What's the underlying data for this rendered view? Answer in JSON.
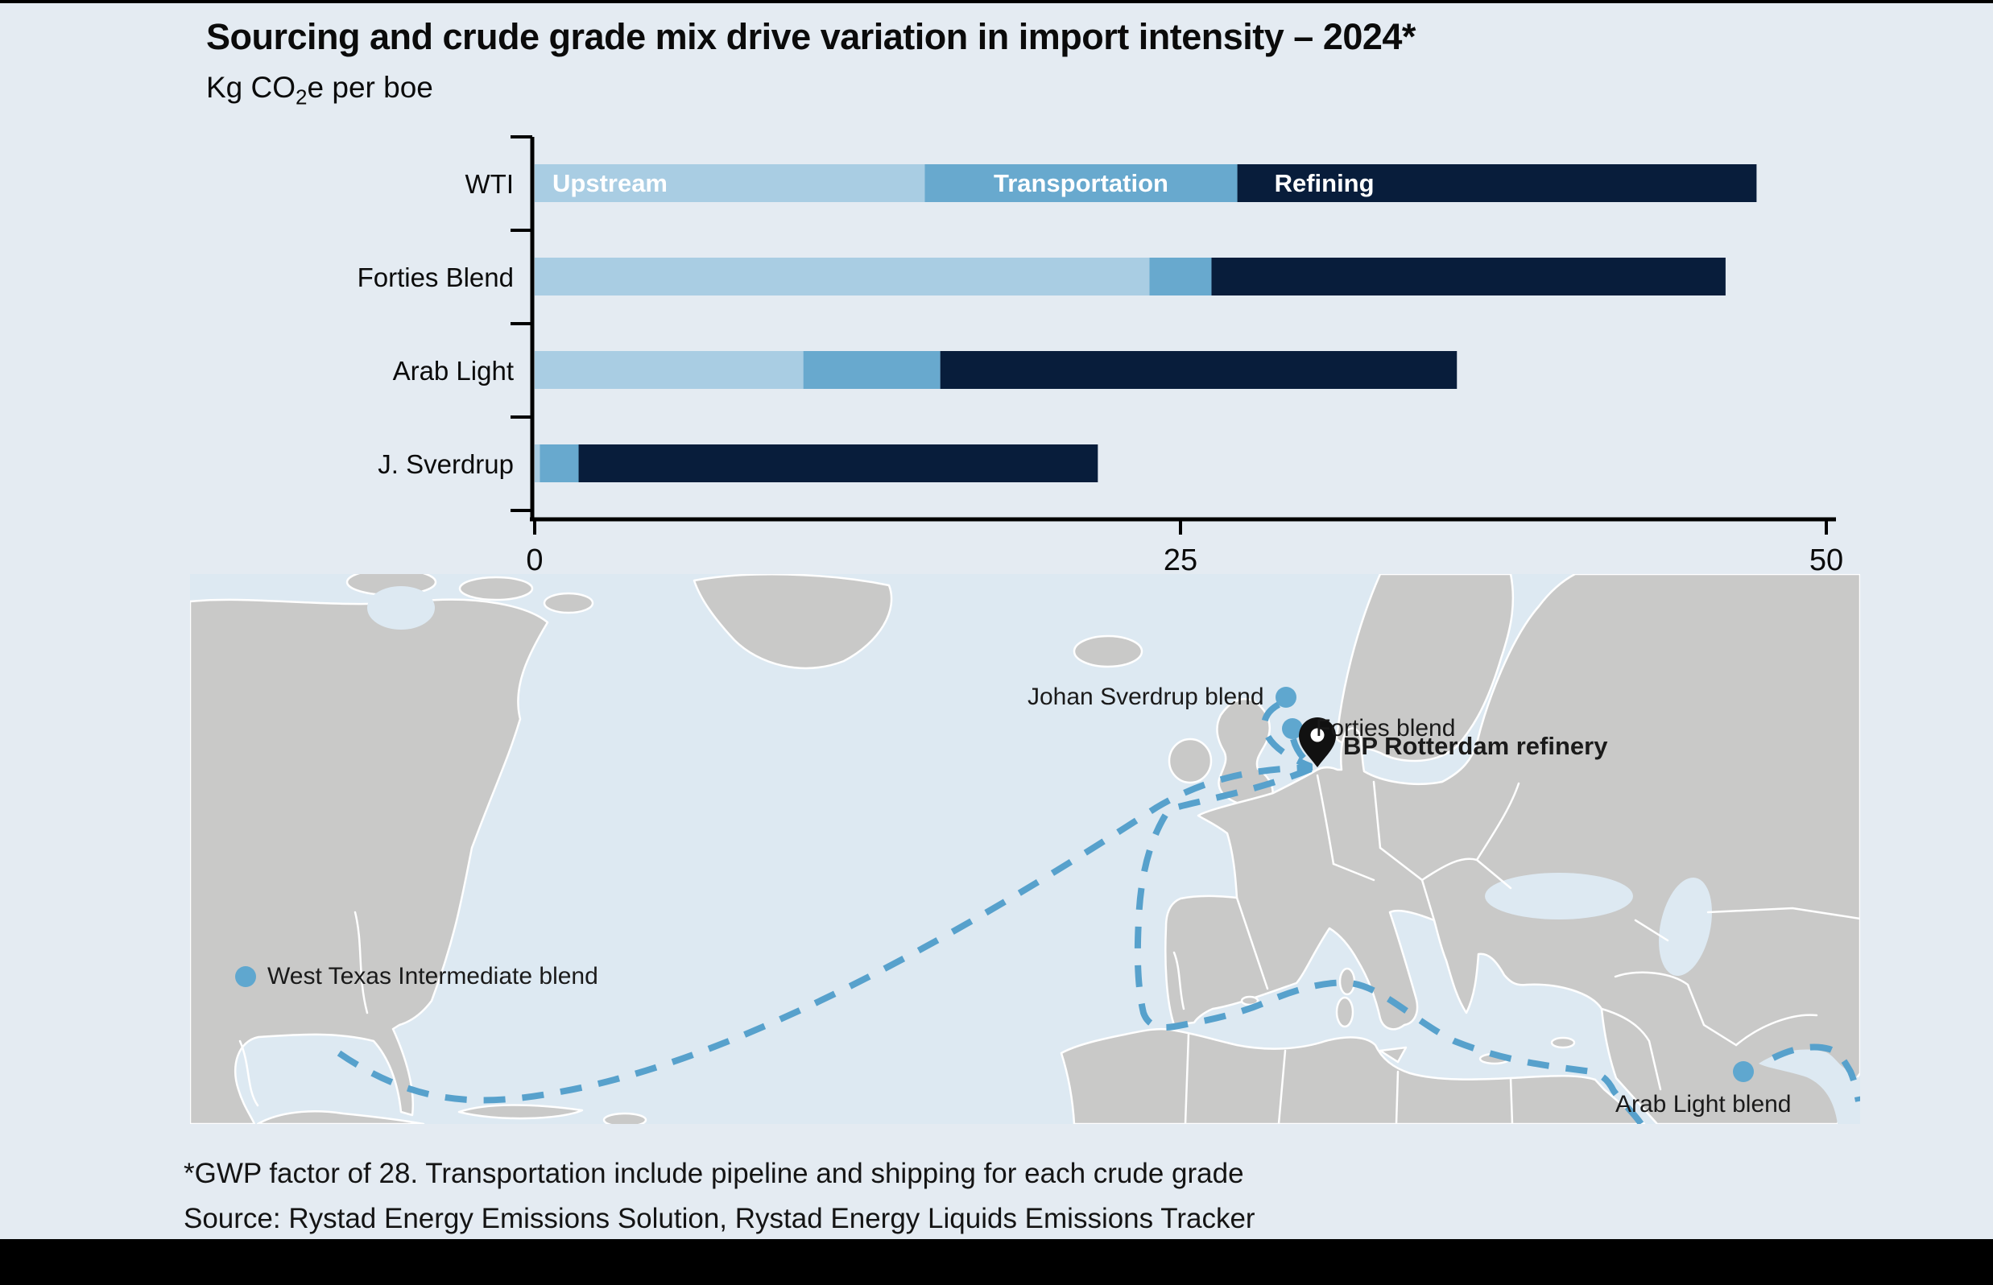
{
  "page": {
    "background_color": "#e4ebf2",
    "title": "Sourcing and crude grade mix drive variation in import intensity – 2024*",
    "subtitle_parts": {
      "pre": "Kg CO",
      "sub": "2",
      "post": "e per boe"
    },
    "footnote": "*GWP factor of 28. Transportation include pipeline and shipping for each crude grade",
    "source": "Source: Rystad Energy Emissions Solution, Rystad Energy Liquids Emissions Tracker"
  },
  "chart_data": {
    "type": "bar",
    "orientation": "horizontal",
    "stacked": true,
    "title": "Sourcing and crude grade mix drive variation in import intensity – 2024*",
    "units": "Kg CO2e per boe",
    "categories": [
      "WTI",
      "Forties Blend",
      "Arab Light",
      "J. Sverdrup"
    ],
    "series": [
      {
        "name": "Upstream",
        "color": "#a9cde3",
        "values": [
          15.1,
          23.8,
          10.4,
          0.2
        ]
      },
      {
        "name": "Transportation",
        "color": "#68a9ce",
        "values": [
          12.1,
          2.4,
          5.3,
          1.5
        ]
      },
      {
        "name": "Refining",
        "color": "#081d3b",
        "values": [
          20.1,
          19.9,
          20.0,
          20.1
        ]
      }
    ],
    "totals": [
      47.3,
      46.1,
      35.7,
      21.8
    ],
    "xlim": [
      0,
      50
    ],
    "x_ticks": [
      0,
      25,
      50
    ],
    "grid": false,
    "legend_position": "labels inside first bar",
    "axis_color": "#000000",
    "bar_label_color": "#ffffff"
  },
  "map": {
    "colors": {
      "sea": "#dde9f2",
      "land": "#c9c9c8",
      "border": "#ffffff",
      "route": "#57a1cc",
      "marker": "#5fa7cf",
      "pin": "#111111"
    },
    "labels": {
      "johan_sverdrup": {
        "text": "Johan Sverdrup blend"
      },
      "forties": {
        "text": "Forties blend"
      },
      "bp_rotterdam": {
        "text": "BP Rotterdam refinery"
      },
      "wti": {
        "text": "West Texas Intermediate blend"
      },
      "arab_light": {
        "text": "Arab Light blend"
      }
    }
  }
}
